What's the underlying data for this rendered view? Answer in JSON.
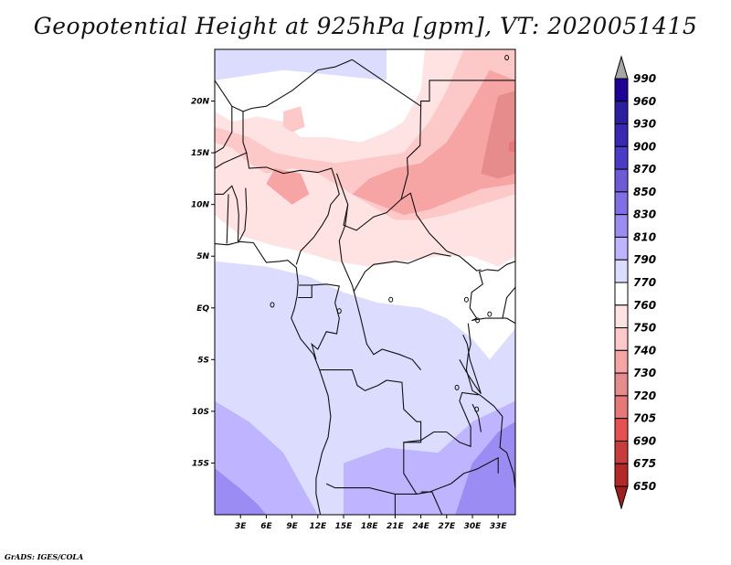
{
  "title": "Geopotential Height at 925hPa [gpm], VT: 2020051415",
  "credit": "GrADS: IGES/COLA",
  "chart_data": {
    "type": "heatmap",
    "title": "Geopotential Height at 925hPa [gpm], VT: 2020051415",
    "variable": "Geopotential Height",
    "level": "925hPa",
    "units": "gpm",
    "valid_time": "2020051415",
    "lon_range": [
      0,
      35
    ],
    "lat_range": [
      -20,
      25
    ],
    "x_ticks": [
      {
        "value": 3,
        "label": "3E"
      },
      {
        "value": 6,
        "label": "6E"
      },
      {
        "value": 9,
        "label": "9E"
      },
      {
        "value": 12,
        "label": "12E"
      },
      {
        "value": 15,
        "label": "15E"
      },
      {
        "value": 18,
        "label": "18E"
      },
      {
        "value": 21,
        "label": "21E"
      },
      {
        "value": 24,
        "label": "24E"
      },
      {
        "value": 27,
        "label": "27E"
      },
      {
        "value": 30,
        "label": "30E"
      },
      {
        "value": 33,
        "label": "33E"
      }
    ],
    "y_ticks": [
      {
        "value": 20,
        "label": "20N"
      },
      {
        "value": 15,
        "label": "15N"
      },
      {
        "value": 10,
        "label": "10N"
      },
      {
        "value": 5,
        "label": "5N"
      },
      {
        "value": 0,
        "label": "EQ"
      },
      {
        "value": -5,
        "label": "5S"
      },
      {
        "value": -10,
        "label": "10S"
      },
      {
        "value": -15,
        "label": "15S"
      }
    ],
    "colorbar": {
      "orientation": "vertical",
      "placement": "right",
      "labels": [
        "990",
        "960",
        "930",
        "900",
        "870",
        "850",
        "830",
        "810",
        "790",
        "770",
        "760",
        "750",
        "740",
        "730",
        "720",
        "705",
        "690",
        "675",
        "650"
      ],
      "colors": [
        "#a6a6a6",
        "#1e0096",
        "#2b1ea0",
        "#3a28b4",
        "#4b3cc8",
        "#6e5ad8",
        "#7f6ee6",
        "#9b8cf4",
        "#beb4ff",
        "#dcdcff",
        "#ffffff",
        "#ffe3e3",
        "#fcc8c8",
        "#f6a4a4",
        "#e68c8c",
        "#e67878",
        "#e65050",
        "#c83c3c",
        "#b42828",
        "#a01e1e"
      ],
      "extend": "both"
    },
    "contour_regions": [
      {
        "level": "790-810",
        "color": "#beb4ff",
        "polygon": [
          [
            0,
            -9
          ],
          [
            4,
            -11
          ],
          [
            8,
            -14
          ],
          [
            10,
            -17
          ],
          [
            12,
            -20
          ],
          [
            0,
            -20
          ]
        ]
      },
      {
        "level": "810-830",
        "color": "#9b8cf4",
        "polygon": [
          [
            0,
            -15.5
          ],
          [
            3,
            -17.5
          ],
          [
            5,
            -19
          ],
          [
            6,
            -20
          ],
          [
            0,
            -20
          ]
        ]
      },
      {
        "level": "790-810",
        "color": "#beb4ff",
        "polygon": [
          [
            15,
            -15
          ],
          [
            20,
            -13.5
          ],
          [
            26,
            -14
          ],
          [
            30,
            -11
          ],
          [
            34,
            -8
          ],
          [
            35,
            -7
          ],
          [
            35,
            -20
          ],
          [
            15,
            -20
          ]
        ]
      },
      {
        "level": "810-830",
        "color": "#9b8cf4",
        "polygon": [
          [
            30,
            -15
          ],
          [
            33,
            -12
          ],
          [
            35,
            -11
          ],
          [
            35,
            -20
          ],
          [
            28,
            -20
          ]
        ]
      },
      {
        "level": "770-790",
        "color": "#dcdcff",
        "polygon": [
          [
            0,
            4.5
          ],
          [
            6,
            4
          ],
          [
            11,
            3
          ],
          [
            15,
            1.5
          ],
          [
            19,
            0.5
          ],
          [
            24,
            0
          ],
          [
            27,
            -1
          ],
          [
            30,
            -3
          ],
          [
            32,
            -5
          ],
          [
            35,
            -6
          ],
          [
            35,
            -9
          ],
          [
            30,
            -11
          ],
          [
            26,
            -14
          ],
          [
            20,
            -13.5
          ],
          [
            15,
            -15
          ],
          [
            12,
            -20
          ],
          [
            10,
            -17
          ],
          [
            8,
            -14
          ],
          [
            4,
            -11
          ],
          [
            0,
            -9
          ]
        ]
      },
      {
        "level": "770-790",
        "color": "#dcdcff",
        "polygon": [
          [
            0,
            25
          ],
          [
            20,
            25
          ],
          [
            20,
            22
          ],
          [
            14,
            22.5
          ],
          [
            8,
            23
          ],
          [
            4,
            22.5
          ],
          [
            0,
            22
          ]
        ]
      },
      {
        "level": "760-770",
        "color": "#ffffff",
        "polygon": [
          [
            0,
            22
          ],
          [
            4,
            22.5
          ],
          [
            8,
            23
          ],
          [
            14,
            22.5
          ],
          [
            20,
            22
          ],
          [
            20,
            25
          ],
          [
            24.5,
            25
          ],
          [
            24,
            21
          ],
          [
            22,
            18
          ],
          [
            20,
            17
          ],
          [
            17,
            16
          ],
          [
            13,
            16.5
          ],
          [
            10,
            16.5
          ],
          [
            8,
            18
          ],
          [
            5,
            18.5
          ],
          [
            2,
            18
          ],
          [
            0,
            19
          ]
        ]
      },
      {
        "level": "760-770",
        "color": "#ffffff",
        "polygon": [
          [
            0,
            9
          ],
          [
            3,
            7
          ],
          [
            7,
            6
          ],
          [
            10,
            5.5
          ],
          [
            14,
            4.5
          ],
          [
            18,
            4
          ],
          [
            22,
            4.5
          ],
          [
            26,
            5
          ],
          [
            30,
            5
          ],
          [
            33,
            4
          ],
          [
            35,
            5
          ],
          [
            35,
            -2
          ],
          [
            32,
            -5
          ],
          [
            30,
            -3
          ],
          [
            27,
            -1
          ],
          [
            24,
            0
          ],
          [
            19,
            0.5
          ],
          [
            15,
            1.5
          ],
          [
            11,
            3
          ],
          [
            6,
            4
          ],
          [
            0,
            4.5
          ]
        ]
      },
      {
        "level": "750-760",
        "color": "#ffe3e3",
        "polygon": [
          [
            0,
            19
          ],
          [
            2,
            18
          ],
          [
            5,
            18.5
          ],
          [
            8,
            18
          ],
          [
            10,
            16.5
          ],
          [
            13,
            16.5
          ],
          [
            17,
            16
          ],
          [
            20,
            17
          ],
          [
            22,
            18
          ],
          [
            24,
            21
          ],
          [
            24.5,
            25
          ],
          [
            35,
            25
          ],
          [
            35,
            5
          ],
          [
            33,
            4
          ],
          [
            30,
            5
          ],
          [
            26,
            5
          ],
          [
            22,
            4.5
          ],
          [
            18,
            4
          ],
          [
            14,
            4.5
          ],
          [
            10,
            5.5
          ],
          [
            7,
            6
          ],
          [
            3,
            7
          ],
          [
            0,
            9
          ]
        ]
      },
      {
        "level": "740-750",
        "color": "#fcc8c8",
        "polygon": [
          [
            0,
            16
          ],
          [
            2,
            15.5
          ],
          [
            4,
            14
          ],
          [
            6,
            13
          ],
          [
            9,
            13.5
          ],
          [
            12,
            13
          ],
          [
            15,
            11.5
          ],
          [
            18,
            10
          ],
          [
            21,
            8.5
          ],
          [
            24,
            8.5
          ],
          [
            27,
            9
          ],
          [
            31,
            10
          ],
          [
            35,
            11
          ],
          [
            35,
            25
          ],
          [
            29,
            25
          ],
          [
            27,
            21
          ],
          [
            25,
            18
          ],
          [
            22,
            15
          ],
          [
            18,
            14.5
          ],
          [
            14,
            14
          ],
          [
            10,
            14.5
          ],
          [
            7,
            15
          ],
          [
            4,
            16.5
          ],
          [
            0,
            17.5
          ]
        ]
      },
      {
        "level": "740-750",
        "color": "#fcc8c8",
        "polygon": [
          [
            8,
            19
          ],
          [
            10,
            19.5
          ],
          [
            10.5,
            17.5
          ],
          [
            9,
            17
          ],
          [
            8,
            17.5
          ]
        ]
      },
      {
        "level": "730-740",
        "color": "#f6a4a4",
        "polygon": [
          [
            16,
            11
          ],
          [
            19,
            10
          ],
          [
            22,
            9
          ],
          [
            25,
            9.5
          ],
          [
            28,
            10.5
          ],
          [
            31,
            11.5
          ],
          [
            35,
            12
          ],
          [
            35,
            22
          ],
          [
            32,
            23
          ],
          [
            30,
            20
          ],
          [
            27,
            16
          ],
          [
            24,
            14
          ],
          [
            21,
            13.5
          ],
          [
            18,
            12.5
          ]
        ]
      },
      {
        "level": "730-740",
        "color": "#f6a4a4",
        "polygon": [
          [
            6,
            12
          ],
          [
            9,
            10
          ],
          [
            11,
            11
          ],
          [
            10,
            13
          ],
          [
            7,
            13.5
          ]
        ]
      },
      {
        "level": "720-730",
        "color": "#e68c8c",
        "polygon": [
          [
            31,
            13
          ],
          [
            33,
            12.5
          ],
          [
            35,
            13
          ],
          [
            35,
            21
          ],
          [
            33,
            20.5
          ],
          [
            32,
            17
          ]
        ]
      },
      {
        "level": "705-720",
        "color": "#e67878",
        "polygon": [
          [
            34.2,
            15.2
          ],
          [
            35,
            15
          ],
          [
            35,
            16.2
          ],
          [
            34.3,
            16
          ]
        ]
      }
    ]
  }
}
